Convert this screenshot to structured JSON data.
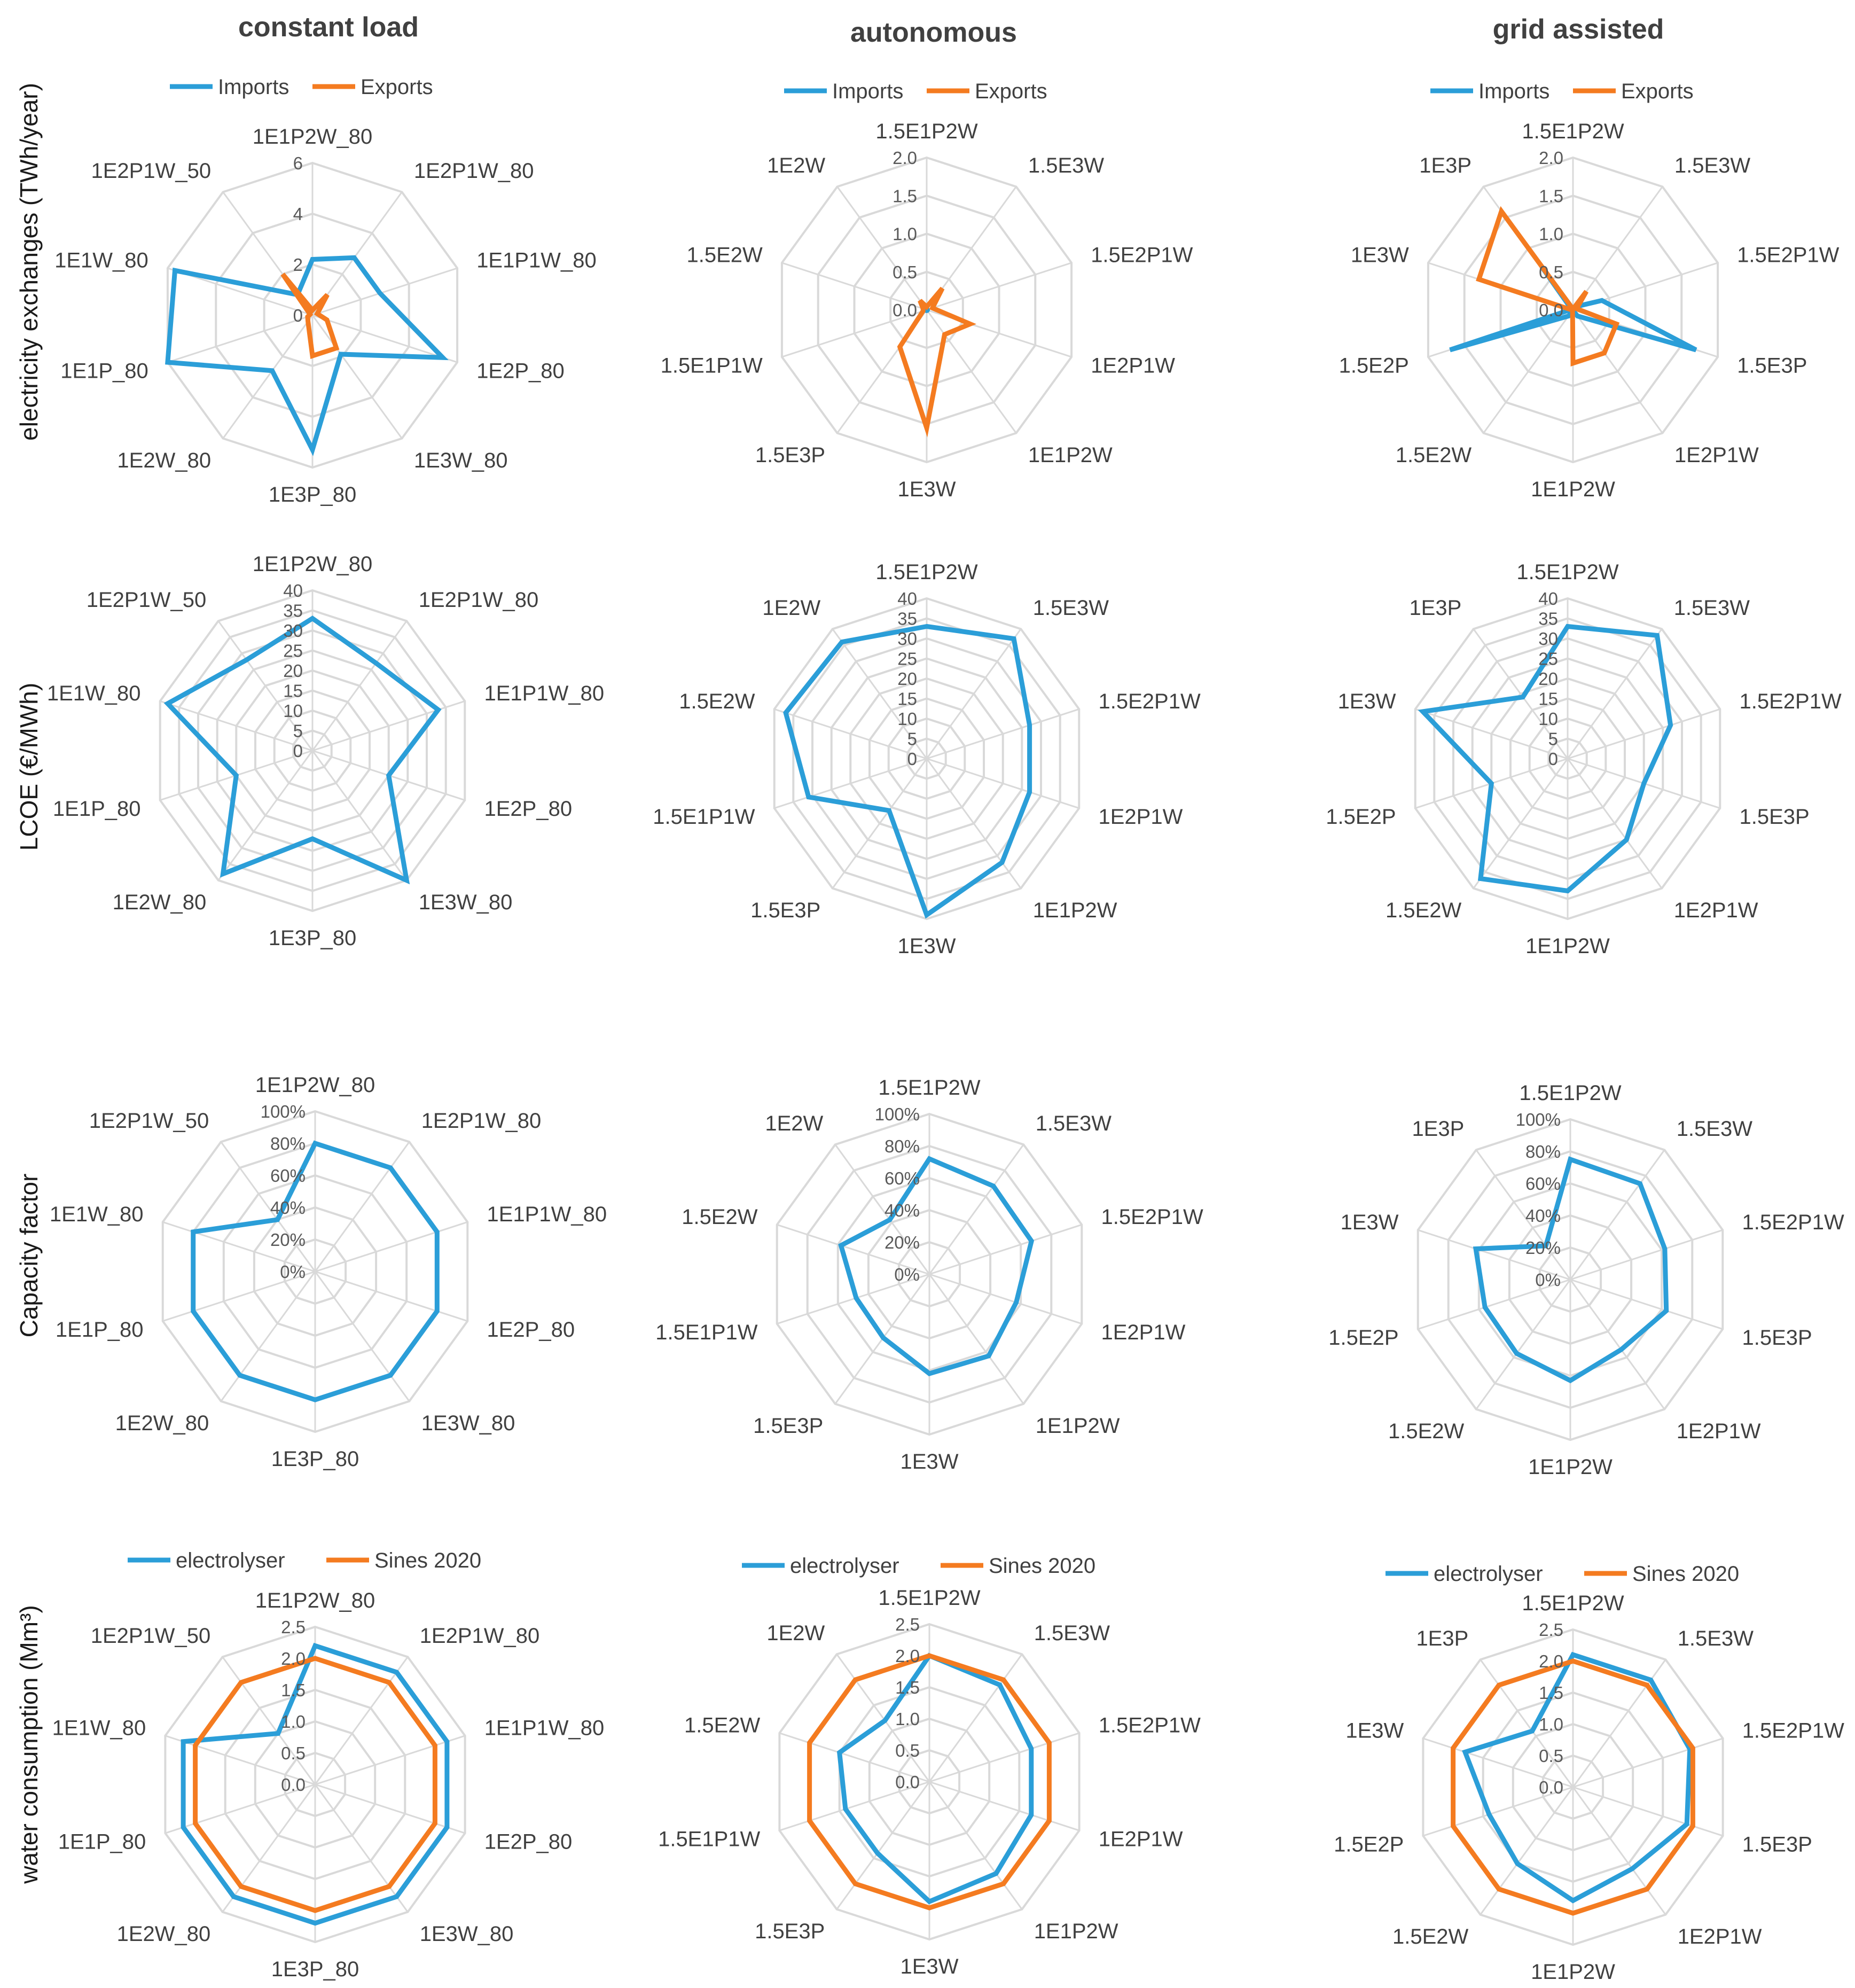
{
  "colors": {
    "blue": "#2b9ed8",
    "orange": "#f47b20",
    "grid": "#d9d9d9"
  },
  "columns": [
    {
      "title": "constant load"
    },
    {
      "title": "autonomous"
    },
    {
      "title": "grid assisted"
    }
  ],
  "rows": [
    {
      "label": "electricity exchanges (TWh/year)"
    },
    {
      "label": "LCOE (€/MWh)"
    },
    {
      "label": "Capacity factor"
    },
    {
      "label": "water consumption (Mm³)"
    }
  ],
  "chart_data": [
    {
      "type": "radar",
      "title": "constant load",
      "ylabel": "electricity exchanges (TWh/year)",
      "categories": [
        "1E1P2W_80",
        "1E2P1W_80",
        "1E1P1W_80",
        "1E2P_80",
        "1E3W_80",
        "1E3P_80",
        "1E2W_80",
        "1E1P_80",
        "1E1W_80",
        "1E2P1W_50"
      ],
      "rlim": [
        0,
        6
      ],
      "ticks": [
        "0",
        "2",
        "4",
        "6"
      ],
      "tick_values": [
        0,
        2,
        4,
        6
      ],
      "legend": "top",
      "series": [
        {
          "name": "Imports",
          "color": "#2b9ed8",
          "values": [
            2.2,
            2.8,
            2.8,
            5.4,
            1.9,
            5.3,
            2.7,
            6.2,
            5.7,
            1.0
          ]
        },
        {
          "name": "Exports",
          "color": "#f47b20",
          "values": [
            0.2,
            1.0,
            0.2,
            0.6,
            1.6,
            1.6,
            0.3,
            0.2,
            0.1,
            2.0
          ]
        }
      ]
    },
    {
      "type": "radar",
      "title": "autonomous",
      "ylabel": "electricity exchanges (TWh/year)",
      "categories": [
        "1.5E1P2W",
        "1.5E3W",
        "1.5E2P1W",
        "1E2P1W",
        "1E1P2W",
        "1E3W",
        "1.5E3P",
        "1.5E1P1W",
        "1.5E2W",
        "1E2W"
      ],
      "rlim": [
        0,
        2
      ],
      "ticks": [
        "0.0",
        "0.5",
        "1.0",
        "1.5",
        "2.0"
      ],
      "tick_values": [
        0,
        0.5,
        1,
        1.5,
        2
      ],
      "legend": "top",
      "series": [
        {
          "name": "Imports",
          "color": "#2b9ed8",
          "values": [
            0.01,
            0.01,
            0.01,
            0.01,
            0.01,
            0.01,
            0.01,
            0.01,
            0.01,
            0.01
          ]
        },
        {
          "name": "Exports",
          "color": "#f47b20",
          "values": [
            0.04,
            0.35,
            0.08,
            0.6,
            0.4,
            1.55,
            0.6,
            0.05,
            0.05,
            0.15
          ]
        }
      ]
    },
    {
      "type": "radar",
      "title": "grid assisted",
      "ylabel": "electricity exchanges (TWh/year)",
      "categories": [
        "1.5E1P2W",
        "1.5E3W",
        "1.5E2P1W",
        "1.5E3P",
        "1E2P1W",
        "1E1P2W",
        "1.5E2W",
        "1.5E2P",
        "1E3W",
        "1E3P"
      ],
      "rlim": [
        0,
        2
      ],
      "ticks": [
        "0.0",
        "0.5",
        "1.0",
        "1.5",
        "2.0"
      ],
      "tick_values": [
        0,
        0.5,
        1,
        1.5,
        2
      ],
      "legend": "top",
      "series": [
        {
          "name": "Imports",
          "color": "#2b9ed8",
          "values": [
            0.01,
            0.05,
            0.4,
            1.7,
            0.1,
            0.01,
            0.1,
            1.7,
            0.02,
            0.7
          ]
        },
        {
          "name": "Exports",
          "color": "#f47b20",
          "values": [
            0.01,
            0.3,
            0.05,
            0.6,
            0.7,
            0.7,
            0.01,
            0.01,
            1.3,
            1.6
          ]
        }
      ]
    },
    {
      "type": "radar",
      "title": "constant load",
      "ylabel": "LCOE (€/MWh)",
      "categories": [
        "1E1P2W_80",
        "1E2P1W_80",
        "1E1P1W_80",
        "1E2P_80",
        "1E3W_80",
        "1E3P_80",
        "1E2W_80",
        "1E1P_80",
        "1E1W_80",
        "1E2P1W_50"
      ],
      "rlim": [
        0,
        40
      ],
      "ticks": [
        "0",
        "5",
        "10",
        "15",
        "20",
        "25",
        "30",
        "35",
        "40"
      ],
      "tick_values": [
        0,
        5,
        10,
        15,
        20,
        25,
        30,
        35,
        40
      ],
      "series": [
        {
          "name": "LCOE",
          "color": "#2b9ed8",
          "values": [
            33,
            27,
            33,
            20,
            40,
            22,
            38,
            20,
            38,
            28
          ]
        }
      ]
    },
    {
      "type": "radar",
      "title": "autonomous",
      "ylabel": "LCOE (€/MWh)",
      "categories": [
        "1.5E1P2W",
        "1.5E3W",
        "1.5E2P1W",
        "1E2P1W",
        "1E1P2W",
        "1E3W",
        "1.5E3P",
        "1.5E1P1W",
        "1.5E2W",
        "1E2W"
      ],
      "rlim": [
        0,
        40
      ],
      "ticks": [
        "0",
        "5",
        "10",
        "15",
        "20",
        "25",
        "30",
        "35",
        "40"
      ],
      "tick_values": [
        0,
        5,
        10,
        15,
        20,
        25,
        30,
        35,
        40
      ],
      "series": [
        {
          "name": "LCOE",
          "color": "#2b9ed8",
          "values": [
            33,
            37,
            27,
            27,
            32,
            39,
            16,
            31,
            37,
            36
          ]
        }
      ]
    },
    {
      "type": "radar",
      "title": "grid assisted",
      "ylabel": "LCOE (€/MWh)",
      "categories": [
        "1.5E1P2W",
        "1.5E3W",
        "1.5E2P1W",
        "1.5E3P",
        "1E2P1W",
        "1E1P2W",
        "1.5E2W",
        "1.5E2P",
        "1E3W",
        "1E3P"
      ],
      "rlim": [
        0,
        40
      ],
      "ticks": [
        "0",
        "5",
        "10",
        "15",
        "20",
        "25",
        "30",
        "35",
        "40"
      ],
      "tick_values": [
        0,
        5,
        10,
        15,
        20,
        25,
        30,
        35,
        40
      ],
      "series": [
        {
          "name": "LCOE",
          "color": "#2b9ed8",
          "values": [
            33,
            38,
            27,
            20,
            25,
            33,
            37,
            20,
            38,
            19
          ]
        }
      ]
    },
    {
      "type": "radar",
      "title": "constant load",
      "ylabel": "Capacity factor",
      "categories": [
        "1E1P2W_80",
        "1E2P1W_80",
        "1E1P1W_80",
        "1E2P_80",
        "1E3W_80",
        "1E3P_80",
        "1E2W_80",
        "1E1P_80",
        "1E1W_80",
        "1E2P1W_50"
      ],
      "rlim": [
        0,
        100
      ],
      "ticks": [
        "0%",
        "20%",
        "40%",
        "60%",
        "80%",
        "100%"
      ],
      "tick_values": [
        0,
        20,
        40,
        60,
        80,
        100
      ],
      "series": [
        {
          "name": "Capacity factor",
          "color": "#2b9ed8",
          "values": [
            80,
            80,
            80,
            80,
            80,
            80,
            80,
            80,
            80,
            40
          ]
        }
      ]
    },
    {
      "type": "radar",
      "title": "autonomous",
      "ylabel": "Capacity factor",
      "categories": [
        "1.5E1P2W",
        "1.5E3W",
        "1.5E2P1W",
        "1E2P1W",
        "1E1P2W",
        "1E3W",
        "1.5E3P",
        "1.5E1P1W",
        "1.5E2W",
        "1E2W"
      ],
      "rlim": [
        0,
        100
      ],
      "ticks": [
        "0%",
        "20%",
        "40%",
        "60%",
        "80%",
        "100%"
      ],
      "tick_values": [
        0,
        20,
        40,
        60,
        80,
        100
      ],
      "series": [
        {
          "name": "Capacity factor",
          "color": "#2b9ed8",
          "values": [
            72,
            68,
            67,
            57,
            63,
            62,
            49,
            48,
            58,
            42
          ]
        }
      ]
    },
    {
      "type": "radar",
      "title": "grid assisted",
      "ylabel": "Capacity factor",
      "categories": [
        "1.5E1P2W",
        "1.5E3W",
        "1.5E2P1W",
        "1.5E3P",
        "1E2P1W",
        "1E1P2W",
        "1.5E2W",
        "1.5E2P",
        "1E3W",
        "1E3P"
      ],
      "rlim": [
        0,
        100
      ],
      "ticks": [
        "0%",
        "20%",
        "40%",
        "60%",
        "80%",
        "100%"
      ],
      "tick_values": [
        0,
        20,
        40,
        60,
        80,
        100
      ],
      "series": [
        {
          "name": "Capacity factor",
          "color": "#2b9ed8",
          "values": [
            75,
            74,
            62,
            63,
            54,
            63,
            57,
            56,
            62,
            26
          ]
        }
      ]
    },
    {
      "type": "radar",
      "title": "constant load",
      "ylabel": "water consumption (Mm³)",
      "categories": [
        "1E1P2W_80",
        "1E2P1W_80",
        "1E1P1W_80",
        "1E2P_80",
        "1E3W_80",
        "1E3P_80",
        "1E2W_80",
        "1E1P_80",
        "1E1W_80",
        "1E2P1W_50"
      ],
      "rlim": [
        0,
        2.5
      ],
      "ticks": [
        "0.0",
        "0.5",
        "1.0",
        "1.5",
        "2.0",
        "2.5"
      ],
      "tick_values": [
        0,
        0.5,
        1,
        1.5,
        2,
        2.5
      ],
      "legend": "top",
      "series": [
        {
          "name": "electrolyser",
          "color": "#2b9ed8",
          "values": [
            2.2,
            2.2,
            2.2,
            2.2,
            2.2,
            2.2,
            2.2,
            2.2,
            2.2,
            1.0
          ]
        },
        {
          "name": "Sines 2020",
          "color": "#f47b20",
          "values": [
            2.0,
            2.0,
            2.0,
            2.0,
            2.0,
            2.0,
            2.0,
            2.0,
            2.0,
            2.0
          ]
        }
      ]
    },
    {
      "type": "radar",
      "title": "autonomous",
      "ylabel": "water consumption (Mm³)",
      "categories": [
        "1.5E1P2W",
        "1.5E3W",
        "1.5E2P1W",
        "1E2P1W",
        "1E1P2W",
        "1E3W",
        "1.5E3P",
        "1.5E1P1W",
        "1.5E2W",
        "1E2W"
      ],
      "rlim": [
        0,
        2.5
      ],
      "ticks": [
        "0.0",
        "0.5",
        "1.0",
        "1.5",
        "2.0",
        "2.5"
      ],
      "tick_values": [
        0,
        0.5,
        1,
        1.5,
        2,
        2.5
      ],
      "legend": "top",
      "series": [
        {
          "name": "electrolyser",
          "color": "#2b9ed8",
          "values": [
            2.0,
            1.9,
            1.7,
            1.7,
            1.8,
            1.9,
            1.4,
            1.4,
            1.5,
            1.2
          ]
        },
        {
          "name": "Sines 2020",
          "color": "#f47b20",
          "values": [
            2.0,
            2.0,
            2.0,
            2.0,
            2.0,
            2.0,
            2.0,
            2.0,
            2.0,
            2.0
          ]
        }
      ]
    },
    {
      "type": "radar",
      "title": "grid assisted",
      "ylabel": "water consumption (Mm³)",
      "categories": [
        "1.5E1P2W",
        "1.5E3W",
        "1.5E2P1W",
        "1.5E3P",
        "1E2P1W",
        "1E1P2W",
        "1.5E2W",
        "1.5E2P",
        "1E3W",
        "1E3P"
      ],
      "rlim": [
        0,
        2.5
      ],
      "ticks": [
        "0.0",
        "0.5",
        "1.0",
        "1.5",
        "2.0",
        "2.5"
      ],
      "tick_values": [
        0,
        0.5,
        1,
        1.5,
        2,
        2.5
      ],
      "legend": "top",
      "series": [
        {
          "name": "electrolyser",
          "color": "#2b9ed8",
          "values": [
            2.1,
            2.1,
            1.95,
            1.9,
            1.6,
            1.8,
            1.5,
            1.4,
            1.8,
            1.1
          ]
        },
        {
          "name": "Sines 2020",
          "color": "#f47b20",
          "values": [
            2.0,
            2.0,
            2.0,
            2.0,
            2.0,
            2.0,
            2.0,
            2.0,
            2.0,
            2.0
          ]
        }
      ]
    }
  ]
}
